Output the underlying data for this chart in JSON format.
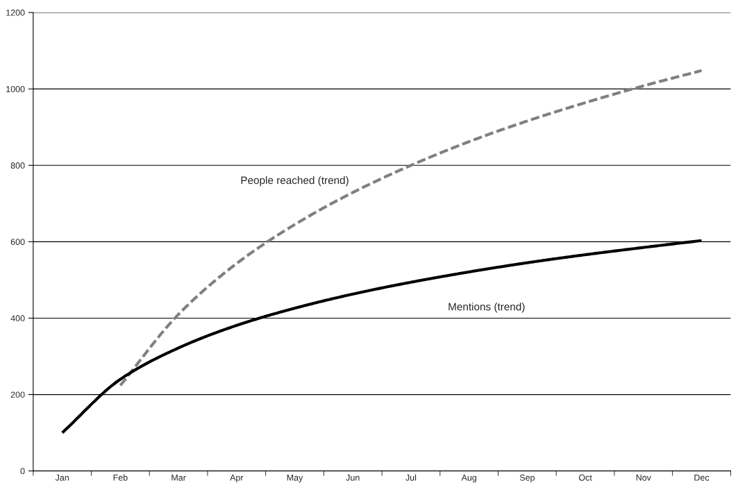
{
  "chart_data": {
    "type": "line",
    "categories": [
      "Jan",
      "Feb",
      "Mar",
      "Apr",
      "May",
      "Jun",
      "Jul",
      "Aug",
      "Sep",
      "Oct",
      "Nov",
      "Dec"
    ],
    "series": [
      {
        "name": "People reached (trend)",
        "color": "#808080",
        "line_style": "dashed",
        "values": [
          null,
          224,
          410,
          543,
          645,
          729,
          800,
          862,
          916,
          964,
          1008,
          1048
        ]
      },
      {
        "name": "Mentions (trend)",
        "color": "#000000",
        "line_style": "solid",
        "values": [
          100,
          240,
          322,
          381,
          426,
          463,
          494,
          521,
          545,
          566,
          585,
          603
        ]
      }
    ],
    "ylim": [
      0,
      1200
    ],
    "yticks": [
      0,
      200,
      400,
      600,
      800,
      1000,
      1200
    ],
    "grid": "y",
    "legend": false,
    "marker": "none"
  }
}
